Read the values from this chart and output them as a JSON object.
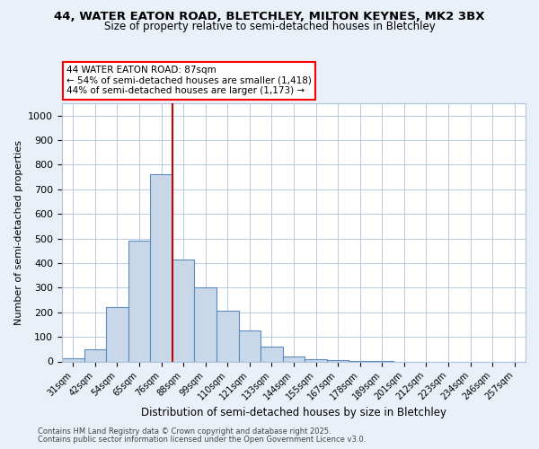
{
  "title_line1": "44, WATER EATON ROAD, BLETCHLEY, MILTON KEYNES, MK2 3BX",
  "title_line2": "Size of property relative to semi-detached houses in Bletchley",
  "xlabel": "Distribution of semi-detached houses by size in Bletchley",
  "ylabel": "Number of semi-detached properties",
  "categories": [
    "31sqm",
    "42sqm",
    "54sqm",
    "65sqm",
    "76sqm",
    "88sqm",
    "99sqm",
    "110sqm",
    "121sqm",
    "133sqm",
    "144sqm",
    "155sqm",
    "167sqm",
    "178sqm",
    "189sqm",
    "201sqm",
    "212sqm",
    "223sqm",
    "234sqm",
    "246sqm",
    "257sqm"
  ],
  "values": [
    12,
    50,
    220,
    490,
    760,
    415,
    300,
    208,
    125,
    60,
    20,
    10,
    5,
    2,
    1,
    0,
    0,
    0,
    0,
    0,
    0
  ],
  "bar_color": "#c8d8e8",
  "bar_edge_color": "#5a8abf",
  "subject_line_color": "#cc0000",
  "annotation_box_text": "44 WATER EATON ROAD: 87sqm\n← 54% of semi-detached houses are smaller (1,418)\n44% of semi-detached houses are larger (1,173) →",
  "ylim": [
    0,
    1050
  ],
  "yticks": [
    0,
    100,
    200,
    300,
    400,
    500,
    600,
    700,
    800,
    900,
    1000
  ],
  "bg_color": "#eaf0f8",
  "plot_bg_color": "#eaf0f8",
  "inner_bg_color": "#ffffff",
  "footer_line1": "Contains HM Land Registry data © Crown copyright and database right 2025.",
  "footer_line2": "Contains public sector information licensed under the Open Government Licence v3.0.",
  "grid_color": "#b0c4de",
  "title_fontsize": 9.5,
  "subtitle_fontsize": 8.5
}
